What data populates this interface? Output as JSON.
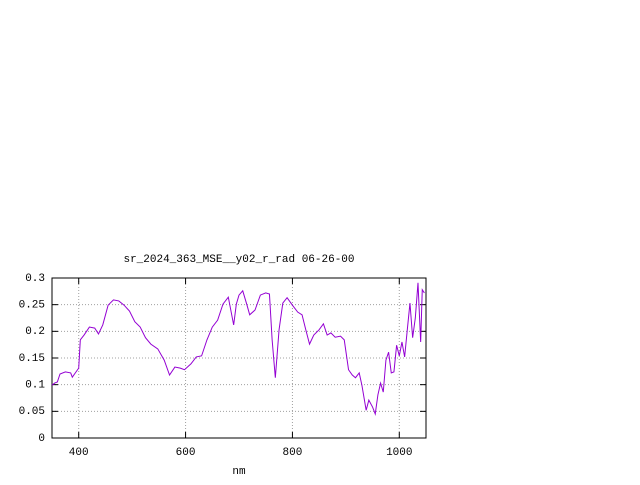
{
  "chart_data": {
    "type": "line",
    "title": "sr_2024_363_MSE__y02_r_rad 06-26-00",
    "xlabel": "nm",
    "color": "#9400d3",
    "grid": true,
    "xlim": [
      350,
      1050
    ],
    "xticks": [
      400,
      600,
      800,
      1000
    ],
    "ylim": [
      0,
      0.3
    ],
    "yticks": [
      0,
      0.05,
      0.1,
      0.15,
      0.2,
      0.25,
      0.3
    ],
    "x": [
      350,
      355,
      360,
      365,
      375,
      385,
      388,
      395,
      400,
      403,
      410,
      420,
      430,
      437,
      445,
      455,
      465,
      475,
      485,
      495,
      505,
      515,
      525,
      535,
      548,
      560,
      570,
      580,
      590,
      598,
      610,
      620,
      630,
      640,
      650,
      660,
      670,
      680,
      690,
      695,
      700,
      707,
      715,
      720,
      730,
      740,
      750,
      757,
      762,
      768,
      775,
      782,
      790,
      800,
      810,
      818,
      825,
      832,
      840,
      850,
      858,
      865,
      872,
      880,
      890,
      897,
      905,
      912,
      918,
      925,
      930,
      938,
      943,
      950,
      955,
      960,
      965,
      970,
      975,
      980,
      985,
      990,
      995,
      1000,
      1005,
      1010,
      1015,
      1020,
      1025,
      1030,
      1035,
      1040,
      1043,
      1047
    ],
    "values": [
      0.099,
      0.103,
      0.105,
      0.12,
      0.124,
      0.122,
      0.114,
      0.124,
      0.131,
      0.184,
      0.193,
      0.208,
      0.206,
      0.195,
      0.212,
      0.249,
      0.259,
      0.257,
      0.249,
      0.238,
      0.218,
      0.208,
      0.188,
      0.176,
      0.167,
      0.146,
      0.118,
      0.133,
      0.131,
      0.128,
      0.139,
      0.152,
      0.154,
      0.184,
      0.208,
      0.221,
      0.251,
      0.264,
      0.212,
      0.251,
      0.268,
      0.276,
      0.249,
      0.231,
      0.24,
      0.268,
      0.272,
      0.27,
      0.184,
      0.113,
      0.203,
      0.253,
      0.263,
      0.249,
      0.236,
      0.231,
      0.203,
      0.176,
      0.193,
      0.203,
      0.214,
      0.193,
      0.197,
      0.189,
      0.191,
      0.184,
      0.128,
      0.118,
      0.113,
      0.122,
      0.099,
      0.052,
      0.071,
      0.058,
      0.045,
      0.081,
      0.103,
      0.086,
      0.146,
      0.161,
      0.122,
      0.124,
      0.174,
      0.154,
      0.18,
      0.152,
      0.203,
      0.253,
      0.188,
      0.225,
      0.291,
      0.18,
      0.278,
      0.272
    ]
  }
}
